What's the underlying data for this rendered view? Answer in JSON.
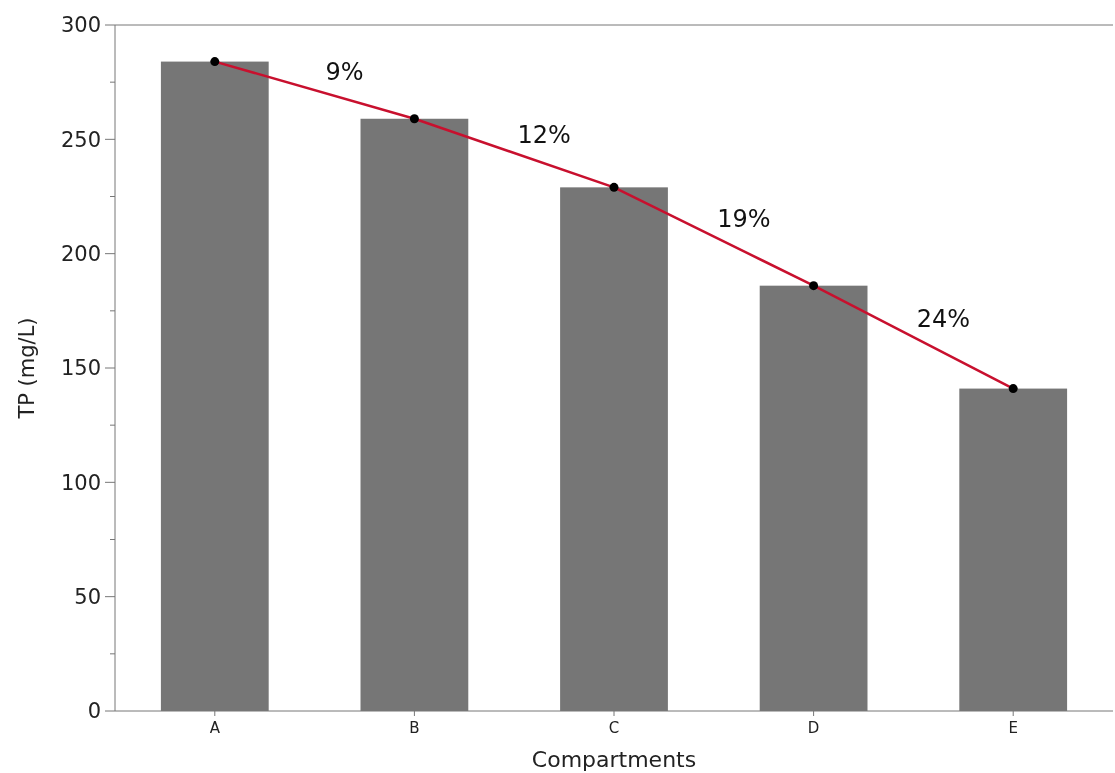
{
  "chart_data": {
    "type": "bar",
    "xlabel": "Compartments",
    "ylabel": "TP (mg/L)",
    "categories": [
      "A",
      "B",
      "C",
      "D",
      "E"
    ],
    "series": [
      {
        "color": "#767676",
        "values": [
          284,
          259,
          229,
          186,
          141
        ]
      },
      {
        "type": "line",
        "color": "#c8102e",
        "marker": "circle",
        "values": [
          284,
          259,
          229,
          186,
          141
        ]
      }
    ],
    "annotations": [
      "9%",
      "12%",
      "19%",
      "24%"
    ],
    "ylim": [
      0,
      300
    ],
    "yticks": [
      0,
      {
        "value": 25,
        "label": null
      },
      50,
      {
        "value": 75,
        "label": null
      },
      100,
      {
        "value": 125,
        "label": null
      },
      150,
      {
        "value": 175,
        "label": null
      },
      200,
      {
        "value": 225,
        "label": null
      },
      250,
      {
        "value": 275,
        "label": null
      },
      300
    ],
    "grid": false
  }
}
